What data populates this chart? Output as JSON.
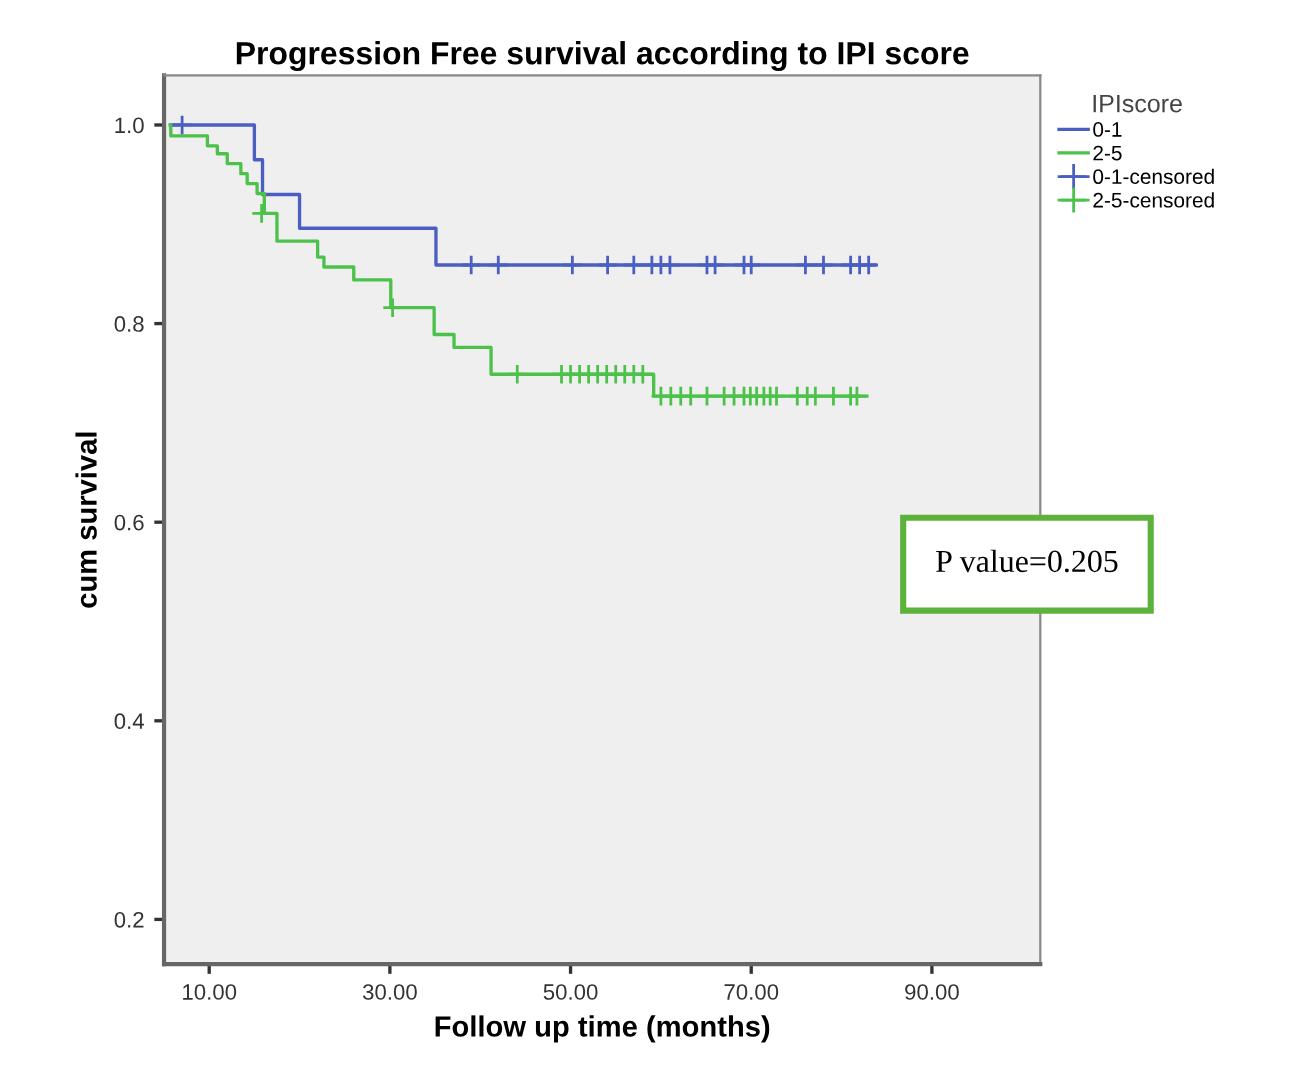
{
  "chart_data": {
    "type": "step",
    "title": "Progression Free survival according to IPI score",
    "xlabel": "Follow up time (months)",
    "ylabel": "cum survival",
    "legend_title": "IPIscore",
    "series": [
      {
        "name": "0-1",
        "color": "#4a5fc1",
        "x": [
          5.7,
          15.0,
          15.9,
          20.0,
          35.1,
          83.7
        ],
        "values": [
          1.0,
          0.965,
          0.93,
          0.896,
          0.859,
          0.859
        ]
      },
      {
        "name": "2-5",
        "color": "#4cc24a",
        "x": [
          5.7,
          5.75,
          9.8,
          10.9,
          12.0,
          13.5,
          14.2,
          15.3,
          16.1,
          17.5,
          22.0,
          22.7,
          26.0,
          30.1,
          34.9,
          37.1,
          41.2,
          59.2,
          82.8
        ],
        "values": [
          1.0,
          0.989,
          0.979,
          0.971,
          0.961,
          0.951,
          0.941,
          0.931,
          0.911,
          0.883,
          0.867,
          0.857,
          0.844,
          0.816,
          0.789,
          0.776,
          0.749,
          0.727,
          0.727
        ]
      },
      {
        "name": "0-1-censored",
        "type": "scatter",
        "marker": "cross",
        "color": "#4a5fc1",
        "x": [
          7.0,
          39.0,
          42.0,
          50.2,
          54.1,
          57.0,
          59.0,
          60.0,
          61.0,
          65.1,
          66.0,
          69.2,
          70.0,
          76.0,
          78.0,
          81.0,
          82.0,
          83.0
        ],
        "values": [
          1.0,
          0.859,
          0.859,
          0.859,
          0.859,
          0.859,
          0.859,
          0.859,
          0.859,
          0.859,
          0.859,
          0.859,
          0.859,
          0.859,
          0.859,
          0.859,
          0.859,
          0.859
        ]
      },
      {
        "name": "2-5-censored",
        "type": "scatter",
        "marker": "cross",
        "color": "#4cc24a",
        "x": [
          15.8,
          30.3,
          44.1,
          49.0,
          50.0,
          51.0,
          52.0,
          53.0,
          54.0,
          55.0,
          56.0,
          57.0,
          58.0,
          60.0,
          61.1,
          62.2,
          63.3,
          65.1,
          67.0,
          68.1,
          69.2,
          69.9,
          70.6,
          71.4,
          72.1,
          72.8,
          75.1,
          76.2,
          77.1,
          79.1,
          81.0,
          81.7
        ],
        "values": [
          0.911,
          0.816,
          0.749,
          0.749,
          0.749,
          0.749,
          0.749,
          0.749,
          0.749,
          0.749,
          0.749,
          0.749,
          0.749,
          0.727,
          0.727,
          0.727,
          0.727,
          0.727,
          0.727,
          0.727,
          0.727,
          0.727,
          0.727,
          0.727,
          0.727,
          0.727,
          0.727,
          0.727,
          0.727,
          0.727,
          0.727,
          0.727
        ]
      }
    ],
    "xlim": [
      5,
      102
    ],
    "ylim": [
      0.155,
      1.05
    ],
    "xticks": [
      {
        "value": 10,
        "label": "10.00"
      },
      {
        "value": 30,
        "label": "30.00"
      },
      {
        "value": 50,
        "label": "50.00"
      },
      {
        "value": 70,
        "label": "70.00"
      },
      {
        "value": 90,
        "label": "90.00"
      }
    ],
    "yticks": [
      0.2,
      0.4,
      0.6,
      0.8,
      {
        "value": 1,
        "label": "1.0"
      }
    ],
    "annotations": [
      "P value=0.205"
    ],
    "legend": "top right",
    "grid": false
  }
}
